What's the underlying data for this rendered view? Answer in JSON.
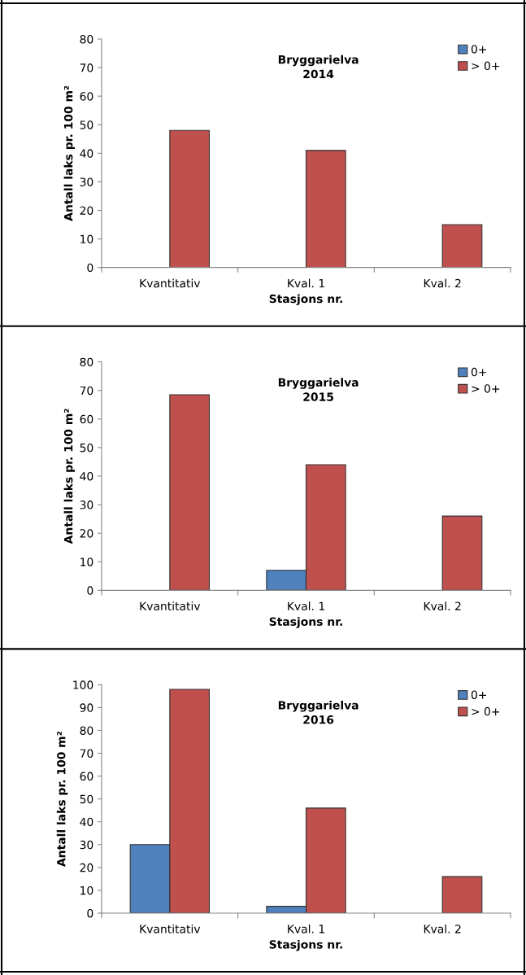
{
  "chart_data": [
    {
      "type": "bar",
      "title": "Bryggarielva\n2014",
      "xlabel": "Stasjons nr.",
      "ylabel": "Antall laks pr. 100 m²",
      "categories": [
        "Kvantitativ",
        "Kval. 1",
        "Kval. 2"
      ],
      "series": [
        {
          "name": "0+",
          "color": "#4f81bd",
          "values": [
            null,
            null,
            null
          ]
        },
        {
          "name": "> 0+",
          "color": "#c0504d",
          "values": [
            48,
            41,
            15
          ]
        }
      ],
      "ylim": [
        0,
        80
      ],
      "yticks": [
        0,
        10,
        20,
        30,
        40,
        50,
        60,
        70,
        80
      ],
      "grid": false,
      "legend": "top right"
    },
    {
      "type": "bar",
      "title": "Bryggarielva\n2015",
      "xlabel": "Stasjons nr.",
      "ylabel": "Antall laks pr. 100 m²",
      "categories": [
        "Kvantitativ",
        "Kval. 1",
        "Kval. 2"
      ],
      "series": [
        {
          "name": "0+",
          "color": "#4f81bd",
          "values": [
            null,
            7,
            null
          ]
        },
        {
          "name": "> 0+",
          "color": "#c0504d",
          "values": [
            68.5,
            44,
            26
          ]
        }
      ],
      "ylim": [
        0,
        80
      ],
      "yticks": [
        0,
        10,
        20,
        30,
        40,
        50,
        60,
        70,
        80
      ],
      "grid": false,
      "legend": "top right"
    },
    {
      "type": "bar",
      "title": "Bryggarielva\n2016",
      "xlabel": "Stasjons nr.",
      "ylabel": "Antall laks pr. 100 m²",
      "categories": [
        "Kvantitativ",
        "Kval. 1",
        "Kval. 2"
      ],
      "series": [
        {
          "name": "0+",
          "color": "#4f81bd",
          "values": [
            30,
            3,
            null
          ]
        },
        {
          "name": "> 0+",
          "color": "#c0504d",
          "values": [
            98,
            46,
            16
          ]
        }
      ],
      "ylim": [
        0,
        100
      ],
      "yticks": [
        0,
        10,
        20,
        30,
        40,
        50,
        60,
        70,
        80,
        90,
        100
      ],
      "grid": false,
      "legend": "top right"
    }
  ]
}
